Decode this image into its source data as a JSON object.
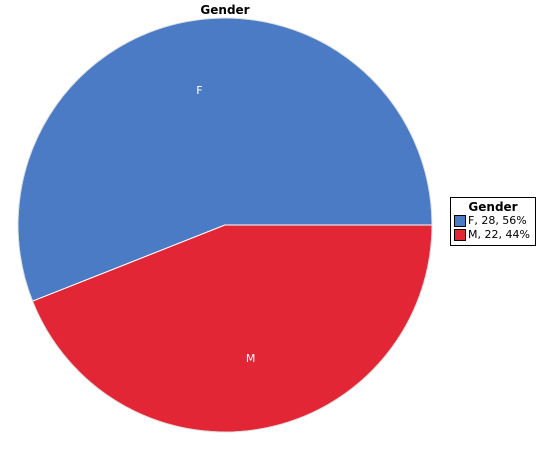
{
  "colors": {
    "F": "#4a7bc4",
    "M": "#e32636"
  },
  "chart_data": {
    "type": "pie",
    "title": "Gender",
    "legend_title": "Gender",
    "legend_position": "right",
    "slices": [
      {
        "label": "F",
        "value": 28,
        "percent": 56,
        "legend_text": "F, 28, 56%"
      },
      {
        "label": "M",
        "value": 22,
        "percent": 44,
        "legend_text": "M, 22, 44%"
      }
    ]
  }
}
